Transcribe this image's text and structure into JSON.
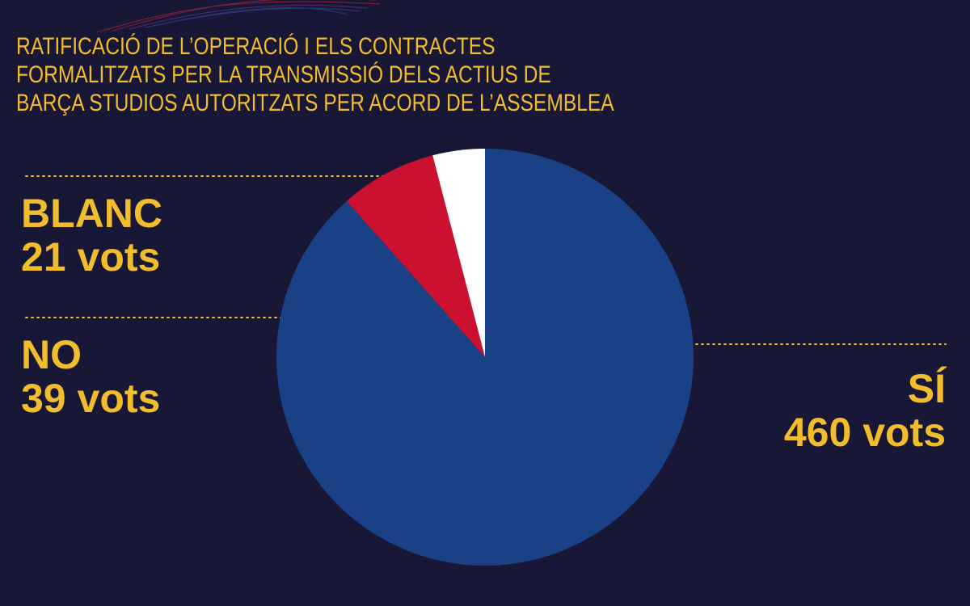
{
  "chart_data": {
    "type": "pie",
    "title": [
      "RATIFICACIÓ DE L’OPERACIÓ I ELS CONTRACTES",
      "FORMALITZATS PER LA TRANSMISSIÓ DELS ACTIUS DE",
      "BARÇA STUDIOS AUTORITZATS PER ACORD DE L’ASSEMBLEA"
    ],
    "categories": [
      "SÍ",
      "NO",
      "BLANC"
    ],
    "values": [
      460,
      39,
      21
    ],
    "value_labels": [
      "460 vots",
      "39 vots",
      "21 vots"
    ],
    "colors": [
      "#1a4185",
      "#cc1030",
      "#ffffff"
    ]
  }
}
